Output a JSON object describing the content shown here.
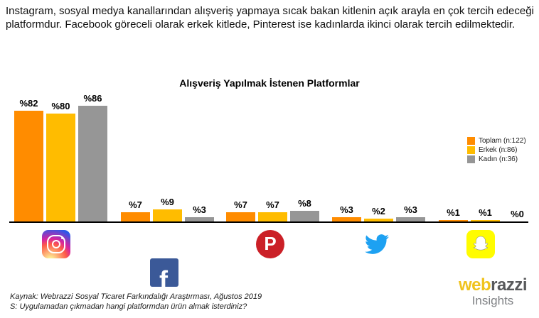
{
  "header": {
    "insight_text": "Instagram, sosyal medya kanallarından alışveriş yapmaya sıcak bakan kitlenin açık arayla en çok tercih edeceği platformdur. Facebook göreceli olarak erkek kitlede, Pinterest ise kadınlarda ikinci olarak tercih edilmektedir."
  },
  "chart": {
    "title": "Alışveriş Yapılmak İstenen Platformlar",
    "axis_color": "#000000",
    "value_label_color": "#000000"
  },
  "chart_data": {
    "type": "bar",
    "title": "Alışveriş Yapılmak İstenen Platformlar",
    "categories": [
      "Instagram",
      "Facebook",
      "Pinterest",
      "Twitter",
      "Snapchat"
    ],
    "series": [
      {
        "name": "Toplam (n:122)",
        "color": "#FF8C00",
        "values": [
          82,
          7,
          7,
          3,
          1
        ]
      },
      {
        "name": "Erkek (n:86)",
        "color": "#FFBC00",
        "values": [
          80,
          9,
          7,
          2,
          1
        ]
      },
      {
        "name": "Kadın (n:36)",
        "color": "#969696",
        "values": [
          86,
          3,
          8,
          3,
          0
        ]
      }
    ],
    "value_prefix": "%",
    "ylim": [
      0,
      90
    ],
    "grid": false,
    "legend_position": "right",
    "icons": [
      "instagram-icon",
      "facebook-icon",
      "pinterest-icon",
      "twitter-icon",
      "snapchat-icon"
    ]
  },
  "footer": {
    "source_line1": "Kaynak: Webrazzi Sosyal Ticaret Farkındalığı Araştırması, Ağustos 2019",
    "source_line2": "S: Uygulamadan çıkmadan hangi platformdan ürün almak isterdiniz?",
    "logo": {
      "part1": "web",
      "part2": "razzi",
      "subtitle": "Insights"
    }
  }
}
